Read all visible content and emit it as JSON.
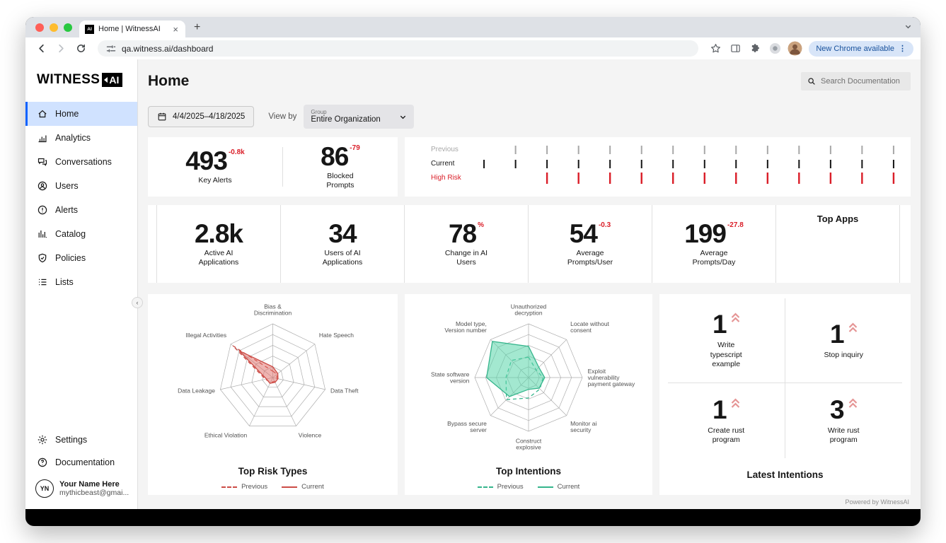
{
  "browser": {
    "tab": {
      "favicon_text": "AI",
      "title": "Home | WitnessAI"
    },
    "url": "qa.witness.ai/dashboard",
    "update_pill_label": "New Chrome available",
    "toolbar_icons": [
      "back-arrow",
      "forward-arrow",
      "reload",
      "site-controls",
      "bookmark-star",
      "side-panel",
      "extensions",
      "extension-badge",
      "profile-avatar"
    ]
  },
  "sidebar": {
    "logo_text": "WITNESS",
    "logo_badge": "AI",
    "items": [
      {
        "label": "Home",
        "icon": "home",
        "active": true
      },
      {
        "label": "Analytics",
        "icon": "analytics",
        "active": false
      },
      {
        "label": "Conversations",
        "icon": "conversations",
        "active": false
      },
      {
        "label": "Users",
        "icon": "users",
        "active": false
      },
      {
        "label": "Alerts",
        "icon": "alerts",
        "active": false
      },
      {
        "label": "Catalog",
        "icon": "catalog",
        "active": false
      },
      {
        "label": "Policies",
        "icon": "policies",
        "active": false
      },
      {
        "label": "Lists",
        "icon": "lists",
        "active": false
      }
    ],
    "settings_label": "Settings",
    "documentation_label": "Documentation",
    "profile": {
      "initials": "YN",
      "name": "Your Name Here",
      "email": "mythicbeast@gmai..."
    }
  },
  "header": {
    "title": "Home",
    "search_placeholder": "Search Documentation"
  },
  "filters": {
    "date_range": "4/4/2025–4/18/2025",
    "view_by_label": "View by",
    "group_label": "Group",
    "group_value": "Entire Organization"
  },
  "primary_stats": [
    {
      "value": "493",
      "delta": "-0.8k",
      "label": "Key Alerts"
    },
    {
      "value": "86",
      "delta": "-79",
      "label": "Blocked\nPrompts"
    }
  ],
  "secondary_stats": [
    {
      "value": "2.8k",
      "delta": "",
      "label": "Active AI\nApplications"
    },
    {
      "value": "34",
      "delta": "",
      "label": "Users of AI\nApplications"
    },
    {
      "value": "78",
      "delta": "%",
      "label": "Change in AI\nUsers"
    },
    {
      "value": "54",
      "delta": "-0.3",
      "label": "Average\nPrompts/User"
    },
    {
      "value": "199",
      "delta": "-27.8",
      "label": "Average\nPrompts/Day"
    }
  ],
  "top_apps": {
    "title": "Top Apps"
  },
  "latest_intentions": {
    "title": "Latest Intentions",
    "trend_icon": "double-chevron-up",
    "trend_color": "#e59595",
    "items": [
      {
        "count": "1",
        "label": "Write\ntypescript\nexample",
        "trend": "up"
      },
      {
        "count": "1",
        "label": "Stop inquiry",
        "trend": "up"
      },
      {
        "count": "1",
        "label": "Create rust\nprogram",
        "trend": "up"
      },
      {
        "count": "3",
        "label": "Write rust\nprogram",
        "trend": "up"
      }
    ]
  },
  "chart_data": [
    {
      "type": "tick-timeline",
      "name": "prompt-activity",
      "columns": 14,
      "rows": [
        {
          "label": "Previous",
          "color": "#a8a8a8",
          "ticks": [
            0,
            1,
            1,
            1,
            1,
            1,
            1,
            1,
            1,
            1,
            1,
            1,
            1,
            1
          ]
        },
        {
          "label": "Current",
          "color": "#161616",
          "ticks": [
            1,
            1,
            1,
            1,
            1,
            1,
            1,
            1,
            1,
            1,
            1,
            1,
            1,
            1
          ]
        },
        {
          "label": "High Risk",
          "color": "#da1e28",
          "ticks": [
            0,
            0,
            1,
            1,
            1,
            1,
            1,
            1,
            1,
            1,
            1,
            1,
            1,
            1
          ]
        }
      ]
    },
    {
      "type": "radar",
      "name": "top-risk-types",
      "title": "Top Risk Types",
      "color": "#cc4c46",
      "fill_color": "rgba(223,105,99,0.5)",
      "axis_range": [
        0,
        1
      ],
      "axes": [
        "Bias &\nDiscrimination",
        "Hate Speech",
        "Data Theft",
        "Violence",
        "Ethical Violation",
        "Data Leakage",
        "Illegal Activities"
      ],
      "series": [
        {
          "name": "Previous",
          "style": "dashed",
          "values": [
            0.12,
            0.1,
            0.08,
            0.08,
            0.1,
            0.14,
            0.95
          ]
        },
        {
          "name": "Current",
          "style": "solid",
          "values": [
            0.2,
            0.12,
            0.1,
            0.1,
            0.12,
            0.12,
            0.8
          ]
        }
      ],
      "legend_position": "bottom"
    },
    {
      "type": "radar",
      "name": "top-intentions",
      "title": "Top Intentions",
      "color": "#35b58c",
      "fill_color": "rgba(88,213,169,0.55)",
      "axis_range": [
        0,
        1
      ],
      "axes": [
        "Unauthorized\ndecryption",
        "Locate without\nconsent",
        "Exploit\nvulnerability\npayment gateway",
        "Monitor ai\nsecurity",
        "Construct\nexplosive",
        "Bypass secure\nserver",
        "State software\nversion",
        "Model type,\nVersion number"
      ],
      "series": [
        {
          "name": "Previous",
          "style": "dashed",
          "values": [
            0.38,
            0.2,
            0.27,
            0.3,
            0.38,
            0.58,
            0.42,
            0.45
          ]
        },
        {
          "name": "Current",
          "style": "solid",
          "values": [
            0.58,
            0.27,
            0.3,
            0.28,
            0.22,
            0.5,
            0.78,
            0.95
          ]
        }
      ],
      "legend_position": "bottom"
    }
  ],
  "footer": {
    "powered_by": "Powered by WitnessAI"
  },
  "colors": {
    "accent_blue": "#0f62fe",
    "active_item_bg": "#d0e2ff",
    "negative_red": "#da1e28",
    "main_bg": "#f4f4f4"
  }
}
